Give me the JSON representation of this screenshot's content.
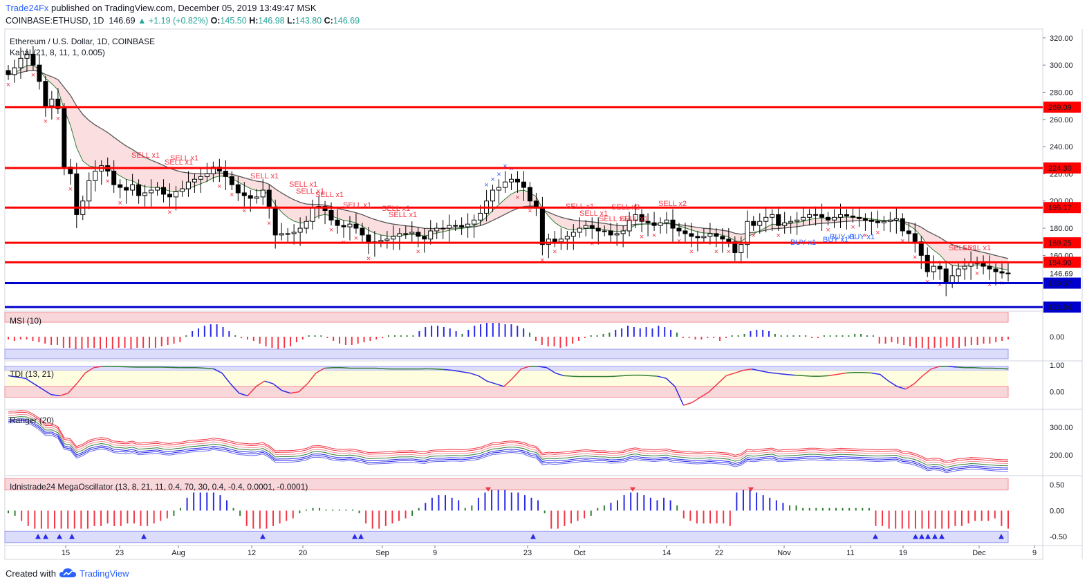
{
  "header": {
    "publisher": "Trade24Fx",
    "published_text": "published on TradingView.com, December 05, 2019 13:49:47 MSK",
    "symbol": "COINBASE:ETHUSD, 1D",
    "last": "146.69",
    "change": "+1.19 (+0.82%)",
    "o_label": "O:",
    "o": "145.50",
    "h_label": "H:",
    "h": "146.98",
    "l_label": "L:",
    "l": "143.80",
    "c_label": "C:",
    "c": "146.69"
  },
  "footer": {
    "created_with": "Created with",
    "brand": "TradingView",
    "logo_icon": "tradingview-cloud-icon"
  },
  "colors": {
    "up": "#26a69a",
    "level_red": "#ff0000",
    "level_blue": "#0000cc",
    "sell": "#f23645",
    "buy": "#2962ff"
  },
  "chart_data": [
    {
      "type": "candlestick",
      "title": "Ethereum / U.S. Dollar, 1D, COINBASE",
      "indicator_label": "Kanal (21, 8, 11, 1, 0.005)",
      "ylim": [
        120,
        325
      ],
      "y_ticks": [
        "320.00",
        "300.00",
        "280.00",
        "260.00",
        "240.00",
        "220.00",
        "200.00",
        "180.00",
        "160.00"
      ],
      "x_ticks": [
        "15",
        "23",
        "Aug",
        "12",
        "20",
        "Sep",
        "9",
        "23",
        "Oct",
        "14",
        "22",
        "Nov",
        "11",
        "19",
        "Dec",
        "9"
      ],
      "price_levels": [
        {
          "value": 269.09,
          "label": "269.09",
          "color": "red"
        },
        {
          "value": 224.3,
          "label": "224.30",
          "color": "red"
        },
        {
          "value": 195.17,
          "label": "195.17",
          "color": "red"
        },
        {
          "value": 169.25,
          "label": "169.25",
          "color": "red"
        },
        {
          "value": 154.9,
          "label": "154.90",
          "color": "red"
        },
        {
          "value": 139.57,
          "label": "139.57",
          "color": "blue"
        },
        {
          "value": 121.94,
          "label": "121.94",
          "color": "blue"
        }
      ],
      "last_price": "146.69",
      "closes": [
        293,
        298,
        305,
        308,
        300,
        288,
        270,
        275,
        268,
        225,
        220,
        190,
        200,
        215,
        222,
        226,
        222,
        212,
        210,
        208,
        212,
        204,
        206,
        208,
        210,
        205,
        203,
        207,
        209,
        214,
        216,
        218,
        220,
        225,
        222,
        218,
        212,
        206,
        204,
        202,
        203,
        208,
        195,
        175,
        176,
        176,
        177,
        180,
        185,
        195,
        196,
        193,
        186,
        182,
        181,
        183,
        180,
        175,
        169,
        170,
        171,
        172,
        174,
        176,
        176,
        177,
        174,
        172,
        178,
        180,
        180,
        182,
        182,
        181,
        183,
        186,
        191,
        200,
        208,
        210,
        214,
        216,
        214,
        210,
        200,
        195,
        168,
        172,
        170,
        172,
        174,
        177,
        180,
        182,
        180,
        178,
        178,
        175,
        176,
        178,
        186,
        190,
        185,
        184,
        182,
        184,
        186,
        180,
        178,
        176,
        174,
        173,
        174,
        176,
        174,
        172,
        170,
        162,
        168,
        185,
        182,
        185,
        188,
        190,
        182,
        184,
        185,
        186,
        188,
        190,
        190,
        188,
        186,
        188,
        190,
        189,
        188,
        187,
        186,
        185,
        184,
        185,
        186,
        187,
        178,
        176,
        170,
        160,
        148,
        152,
        150,
        140,
        145,
        150,
        152,
        155,
        154,
        152,
        150,
        148,
        147,
        146.69
      ],
      "sell_signals": [
        "SELL x1",
        "SELL x1",
        "SELL x1",
        "SELL x1",
        "SELL x1",
        "SELL x1",
        "SELL x1",
        "SELL x1",
        "SELL x1",
        "SELL x1",
        "SELL x1",
        "SELL x1",
        "SELL x1",
        "SELL x2",
        "SELL x1",
        "SELL x2",
        "SELL x1",
        "SELL x1"
      ],
      "buy_signals": [
        "BUY x1",
        "BUY x1",
        "BUY x1",
        "BUY x1"
      ]
    },
    {
      "type": "bar",
      "title": "MSI (10)",
      "y_ticks": [
        "0.00"
      ],
      "values": [
        -0.2,
        -0.3,
        -0.2,
        -0.2,
        -0.3,
        -0.4,
        -0.5,
        -0.6,
        -0.6,
        -0.8,
        -0.8,
        -0.9,
        -0.9,
        -0.8,
        -0.8,
        -0.9,
        -0.8,
        -0.9,
        -0.8,
        -0.8,
        -0.9,
        -0.8,
        -0.8,
        -0.8,
        -0.8,
        -0.7,
        -0.6,
        -0.5,
        -0.4,
        0.1,
        0.4,
        0.6,
        0.8,
        0.9,
        0.9,
        0.7,
        0.4,
        0.1,
        -0.1,
        -0.2,
        -0.3,
        -0.5,
        -0.7,
        -0.8,
        -0.9,
        -0.8,
        -0.7,
        -0.4,
        -0.2,
        0.1,
        0.1,
        0.1,
        -0.1,
        -0.3,
        -0.5,
        -0.6,
        -0.6,
        -0.5,
        -0.4,
        -0.3,
        -0.2,
        -0.1,
        0.1,
        0.1,
        0.1,
        0.1,
        0.1,
        0.4,
        0.7,
        0.8,
        0.8,
        0.7,
        0.6,
        0.4,
        0.2,
        0.5,
        0.8,
        0.9,
        1.0,
        1.0,
        1.0,
        0.9,
        0.9,
        0.8,
        0.6,
        0.3,
        -0.3,
        -0.6,
        -0.7,
        -0.7,
        -0.8,
        -0.7,
        -0.5,
        -0.3,
        -0.1,
        0.1,
        0.1,
        0.2,
        0.3,
        0.5,
        0.6,
        0.8,
        0.7,
        0.6,
        0.7,
        0.6,
        0.8,
        0.7,
        0.5,
        0.3,
        -0.1,
        -0.1,
        -0.2,
        -0.2,
        -0.1,
        -0.1,
        -0.3,
        -0.1,
        0.1,
        0.1,
        0.2,
        0.4,
        0.5,
        0.5,
        0.4,
        0.2,
        0.1,
        0.1,
        0.1,
        0.1,
        0.1,
        -0.1,
        -0.1,
        0.1,
        0.1,
        0.1,
        0.1,
        0.1,
        0.2,
        0.2,
        0.1,
        0.1,
        -0.5,
        -0.5,
        -0.4,
        -0.5,
        -0.6,
        -0.7,
        -0.8,
        -0.8,
        -0.9,
        -0.8,
        -0.8,
        -0.7,
        -0.8,
        -0.8,
        -0.7,
        -0.6,
        -0.6,
        -0.5,
        -0.5,
        -0.4,
        -0.3,
        -0.2
      ]
    },
    {
      "type": "line",
      "title": "TDI (13, 21)",
      "y_ticks": [
        "1.00",
        "0.00"
      ],
      "ylim": [
        -0.6,
        1.1
      ],
      "values": [
        0.6,
        0.55,
        0.5,
        0.3,
        0.1,
        -0.1,
        -0.15,
        -0.05,
        0.3,
        0.7,
        0.9,
        0.95,
        0.95,
        0.94,
        0.93,
        0.92,
        0.92,
        0.92,
        0.92,
        0.91,
        0.9,
        0.9,
        0.9,
        0.88,
        0.86,
        0.7,
        0.3,
        -0.05,
        -0.15,
        0.2,
        0.4,
        0.3,
        0.05,
        -0.05,
        0.0,
        0.3,
        0.7,
        0.88,
        0.9,
        0.9,
        0.88,
        0.88,
        0.88,
        0.88,
        0.86,
        0.85,
        0.85,
        0.85,
        0.85,
        0.86,
        0.85,
        0.83,
        0.8,
        0.75,
        0.7,
        0.6,
        0.4,
        0.3,
        0.2,
        0.5,
        0.85,
        0.95,
        0.95,
        0.9,
        0.7,
        0.6,
        0.58,
        0.57,
        0.57,
        0.57,
        0.57,
        0.58,
        0.6,
        0.62,
        0.62,
        0.6,
        0.58,
        0.5,
        0.2,
        -0.5,
        -0.4,
        -0.2,
        0.0,
        0.3,
        0.6,
        0.7,
        0.8,
        0.85,
        0.78,
        0.72,
        0.68,
        0.65,
        0.62,
        0.6,
        0.58,
        0.58,
        0.6,
        0.65,
        0.7,
        0.72,
        0.72,
        0.7,
        0.65,
        0.4,
        0.2,
        0.1,
        0.3,
        0.6,
        0.85,
        0.95,
        0.95,
        0.92,
        0.9,
        0.9,
        0.88,
        0.88,
        0.87,
        0.85
      ]
    },
    {
      "type": "line",
      "title": "Ranger (20)",
      "y_ticks": [
        "300.00",
        "200.00"
      ],
      "ylim": [
        130,
        360
      ]
    },
    {
      "type": "bar",
      "title": "Idnistrade24 MegaOscillator (13, 8, 21, 11, 0.4, 70, 30, 0.4, -0.4, 0.0001, -0.0001)",
      "y_ticks": [
        "0.50",
        "0.00",
        "-0.50"
      ],
      "ylim": [
        -0.65,
        0.65
      ],
      "values": [
        -0.05,
        -0.1,
        -0.2,
        -0.3,
        -0.35,
        -0.35,
        -0.35,
        -0.35,
        -0.35,
        -0.35,
        -0.35,
        -0.35,
        -0.35,
        -0.3,
        -0.3,
        -0.25,
        -0.3,
        -0.3,
        -0.25,
        -0.25,
        -0.3,
        -0.3,
        -0.25,
        -0.2,
        -0.15,
        -0.1,
        0.05,
        0.25,
        0.35,
        0.35,
        0.35,
        0.35,
        0.3,
        0.2,
        0.05,
        -0.1,
        -0.3,
        -0.35,
        -0.35,
        -0.35,
        -0.3,
        -0.25,
        -0.2,
        -0.15,
        -0.05,
        0.02,
        0.05,
        0.05,
        0.02,
        0.02,
        0.02,
        0.02,
        0.02,
        -0.05,
        -0.25,
        -0.35,
        -0.35,
        -0.3,
        -0.25,
        -0.2,
        -0.15,
        -0.1,
        0.05,
        0.15,
        0.25,
        0.3,
        0.3,
        0.25,
        0.2,
        0.05,
        0.1,
        0.25,
        0.35,
        0.4,
        0.4,
        0.4,
        0.35,
        0.35,
        0.3,
        0.25,
        0.2,
        -0.05,
        -0.35,
        -0.35,
        -0.3,
        -0.25,
        -0.2,
        -0.15,
        -0.1,
        0.05,
        0.1,
        0.15,
        0.2,
        0.3,
        0.35,
        0.35,
        0.3,
        0.25,
        0.2,
        0.25,
        0.2,
        0.1,
        -0.15,
        -0.2,
        -0.25,
        -0.25,
        -0.25,
        -0.25,
        -0.25,
        -0.3,
        0.35,
        0.4,
        0.4,
        0.35,
        0.3,
        0.25,
        0.2,
        0.15,
        0.1,
        0.1,
        0.05,
        0.05,
        0.05,
        0.05,
        0.05,
        0.05,
        0.05,
        0.05,
        0.05,
        0.05,
        0.05,
        -0.3,
        -0.3,
        -0.35,
        -0.35,
        -0.35,
        -0.35,
        -0.35,
        -0.35,
        -0.35,
        -0.35,
        -0.35,
        -0.35,
        -0.3,
        -0.3,
        -0.25,
        -0.2,
        -0.2,
        -0.2,
        -0.15,
        -0.3,
        -0.35
      ]
    }
  ]
}
